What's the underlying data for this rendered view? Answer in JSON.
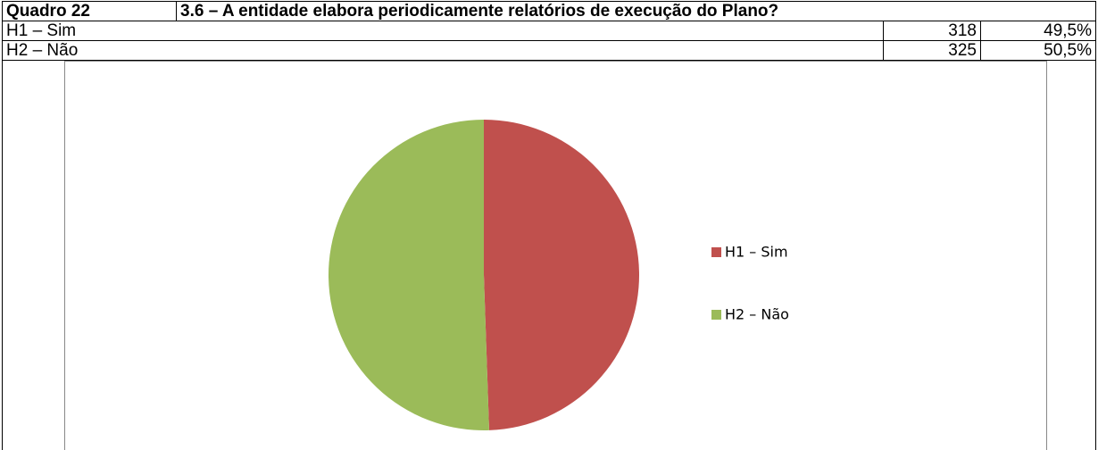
{
  "table": {
    "header": [
      "Quadro 22",
      "3.6 – A entidade elabora periodicamente relatórios de execução do Plano?"
    ],
    "rows": [
      [
        "H1 – Sim",
        318,
        "49,5%"
      ],
      [
        "H2 – Não",
        325,
        "50,5%"
      ]
    ]
  },
  "chart_data": {
    "type": "pie",
    "categories": [
      "H1 – Sim",
      "H2 – Não"
    ],
    "values": [
      318,
      325
    ],
    "colors": [
      "#c0504d",
      "#9bbb59"
    ],
    "legend": "right"
  }
}
